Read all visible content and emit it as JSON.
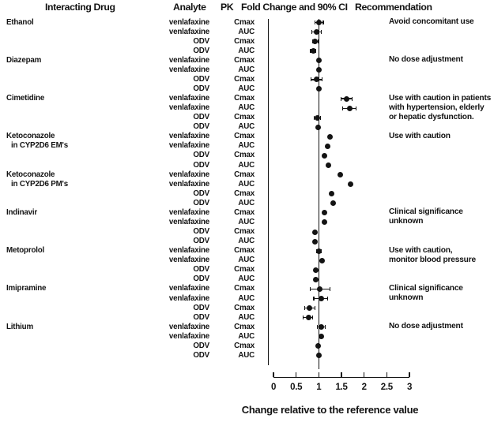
{
  "header": {
    "col_interacting_drug": "Interacting Drug",
    "col_analyte": "Analyte",
    "col_pk": "PK",
    "col_fold_change": "Fold Change and 90% CI",
    "col_recommendation": "Recommendation"
  },
  "colors": {
    "ink": "#131313",
    "background": "#ffffff"
  },
  "chart_data": {
    "type": "scatter",
    "variant": "forest-plot-with-90%-CI",
    "title": "",
    "xlabel": "Change relative to the reference value",
    "xlim": [
      0,
      3
    ],
    "x_ticks": [
      0,
      0.5,
      1,
      1.5,
      2,
      2.5,
      3
    ],
    "x_tick_labels": [
      "0",
      "0.5",
      "1",
      "1.5",
      "2",
      "2.5",
      "3"
    ],
    "reference_line_x": 1,
    "grid": false,
    "groups": [
      {
        "drug_lines": [
          "Ethanol"
        ],
        "recommendation_lines": [
          "Avoid concomitant use"
        ],
        "rows": [
          {
            "analyte": "venlafaxine",
            "pk": "Cmax",
            "value": 1.0,
            "ci90": [
              0.9,
              1.11
            ]
          },
          {
            "analyte": "venlafaxine",
            "pk": "AUC",
            "value": 0.95,
            "ci90": [
              0.84,
              1.06
            ]
          },
          {
            "analyte": "ODV",
            "pk": "Cmax",
            "value": 0.92,
            "ci90": [
              0.86,
              1.0
            ]
          },
          {
            "analyte": "ODV",
            "pk": "AUC",
            "value": 0.88,
            "ci90": [
              0.81,
              0.95
            ]
          }
        ]
      },
      {
        "drug_lines": [
          "Diazepam"
        ],
        "recommendation_lines": [
          "No dose adjustment"
        ],
        "rows": [
          {
            "analyte": "venlafaxine",
            "pk": "Cmax",
            "value": 1.01,
            "ci90": [
              0.98,
              1.04
            ]
          },
          {
            "analyte": "venlafaxine",
            "pk": "AUC",
            "value": 1.01,
            "ci90": [
              0.98,
              1.04
            ]
          },
          {
            "analyte": "ODV",
            "pk": "Cmax",
            "value": 0.95,
            "ci90": [
              0.82,
              1.09
            ]
          },
          {
            "analyte": "ODV",
            "pk": "AUC",
            "value": 1.01,
            "ci90": [
              0.98,
              1.04
            ]
          }
        ]
      },
      {
        "drug_lines": [
          "Cimetidine"
        ],
        "recommendation_lines": [
          "Use with caution in patients",
          "with hypertension, elderly",
          "or hepatic dysfunction."
        ],
        "rows": [
          {
            "analyte": "venlafaxine",
            "pk": "Cmax",
            "value": 1.61,
            "ci90": [
              1.48,
              1.74
            ]
          },
          {
            "analyte": "venlafaxine",
            "pk": "AUC",
            "value": 1.68,
            "ci90": [
              1.52,
              1.84
            ]
          },
          {
            "analyte": "ODV",
            "pk": "Cmax",
            "value": 0.97,
            "ci90": [
              0.89,
              1.05
            ]
          },
          {
            "analyte": "ODV",
            "pk": "AUC",
            "value": 0.99,
            "ci90": [
              0.96,
              1.02
            ]
          }
        ]
      },
      {
        "drug_lines": [
          "Ketoconazole",
          "in CYP2D6 EM's"
        ],
        "recommendation_lines": [
          "Use with caution"
        ],
        "rows": [
          {
            "analyte": "venlafaxine",
            "pk": "Cmax",
            "value": 1.24,
            "ci90": [
              1.21,
              1.27
            ]
          },
          {
            "analyte": "venlafaxine",
            "pk": "AUC",
            "value": 1.2,
            "ci90": [
              1.17,
              1.23
            ]
          },
          {
            "analyte": "ODV",
            "pk": "Cmax",
            "value": 1.13,
            "ci90": [
              1.1,
              1.16
            ]
          },
          {
            "analyte": "ODV",
            "pk": "AUC",
            "value": 1.22,
            "ci90": [
              1.19,
              1.25
            ]
          }
        ]
      },
      {
        "drug_lines": [
          "Ketoconazole",
          "in CYP2D6 PM's"
        ],
        "recommendation_lines": [],
        "rows": [
          {
            "analyte": "venlafaxine",
            "pk": "Cmax",
            "value": 1.47,
            "ci90": [
              1.44,
              1.5
            ]
          },
          {
            "analyte": "venlafaxine",
            "pk": "AUC",
            "value": 1.7,
            "ci90": [
              1.67,
              1.73
            ]
          },
          {
            "analyte": "ODV",
            "pk": "Cmax",
            "value": 1.28,
            "ci90": [
              1.25,
              1.31
            ]
          },
          {
            "analyte": "ODV",
            "pk": "AUC",
            "value": 1.31,
            "ci90": [
              1.28,
              1.34
            ]
          }
        ]
      },
      {
        "drug_lines": [
          "Indinavir"
        ],
        "recommendation_lines": [
          "Clinical significance",
          "unknown"
        ],
        "rows": [
          {
            "analyte": "venlafaxine",
            "pk": "Cmax",
            "value": 1.13,
            "ci90": [
              1.1,
              1.16
            ]
          },
          {
            "analyte": "venlafaxine",
            "pk": "AUC",
            "value": 1.13,
            "ci90": [
              1.1,
              1.16
            ]
          },
          {
            "analyte": "ODV",
            "pk": "Cmax",
            "value": 0.91,
            "ci90": [
              0.88,
              0.94
            ]
          },
          {
            "analyte": "ODV",
            "pk": "AUC",
            "value": 0.92,
            "ci90": [
              0.89,
              0.95
            ]
          }
        ]
      },
      {
        "drug_lines": [
          "Metoprolol"
        ],
        "recommendation_lines": [
          "Use with caution,",
          "monitor blood pressure"
        ],
        "rows": [
          {
            "analyte": "venlafaxine",
            "pk": "Cmax",
            "value": 1.01,
            "ci90": [
              0.95,
              1.07
            ]
          },
          {
            "analyte": "venlafaxine",
            "pk": "AUC",
            "value": 1.08,
            "ci90": [
              1.04,
              1.12
            ]
          },
          {
            "analyte": "ODV",
            "pk": "Cmax",
            "value": 0.93,
            "ci90": [
              0.9,
              0.96
            ]
          },
          {
            "analyte": "ODV",
            "pk": "AUC",
            "value": 0.93,
            "ci90": [
              0.9,
              0.96
            ]
          }
        ]
      },
      {
        "drug_lines": [
          "Imipramine"
        ],
        "recommendation_lines": [
          "Clinical significance",
          "unknown"
        ],
        "rows": [
          {
            "analyte": "venlafaxine",
            "pk": "Cmax",
            "value": 1.02,
            "ci90": [
              0.8,
              1.26
            ]
          },
          {
            "analyte": "venlafaxine",
            "pk": "AUC",
            "value": 1.05,
            "ci90": [
              0.88,
              1.2
            ]
          },
          {
            "analyte": "ODV",
            "pk": "Cmax",
            "value": 0.8,
            "ci90": [
              0.68,
              0.92
            ]
          },
          {
            "analyte": "ODV",
            "pk": "AUC",
            "value": 0.77,
            "ci90": [
              0.65,
              0.88
            ]
          }
        ]
      },
      {
        "drug_lines": [
          "Lithium"
        ],
        "recommendation_lines": [
          "No dose adjustment"
        ],
        "rows": [
          {
            "analyte": "venlafaxine",
            "pk": "Cmax",
            "value": 1.05,
            "ci90": [
              0.96,
              1.16
            ]
          },
          {
            "analyte": "venlafaxine",
            "pk": "AUC",
            "value": 1.05,
            "ci90": [
              1.0,
              1.1
            ]
          },
          {
            "analyte": "ODV",
            "pk": "Cmax",
            "value": 0.99,
            "ci90": [
              0.96,
              1.02
            ]
          },
          {
            "analyte": "ODV",
            "pk": "AUC",
            "value": 1.0,
            "ci90": [
              0.97,
              1.03
            ]
          }
        ]
      }
    ]
  }
}
